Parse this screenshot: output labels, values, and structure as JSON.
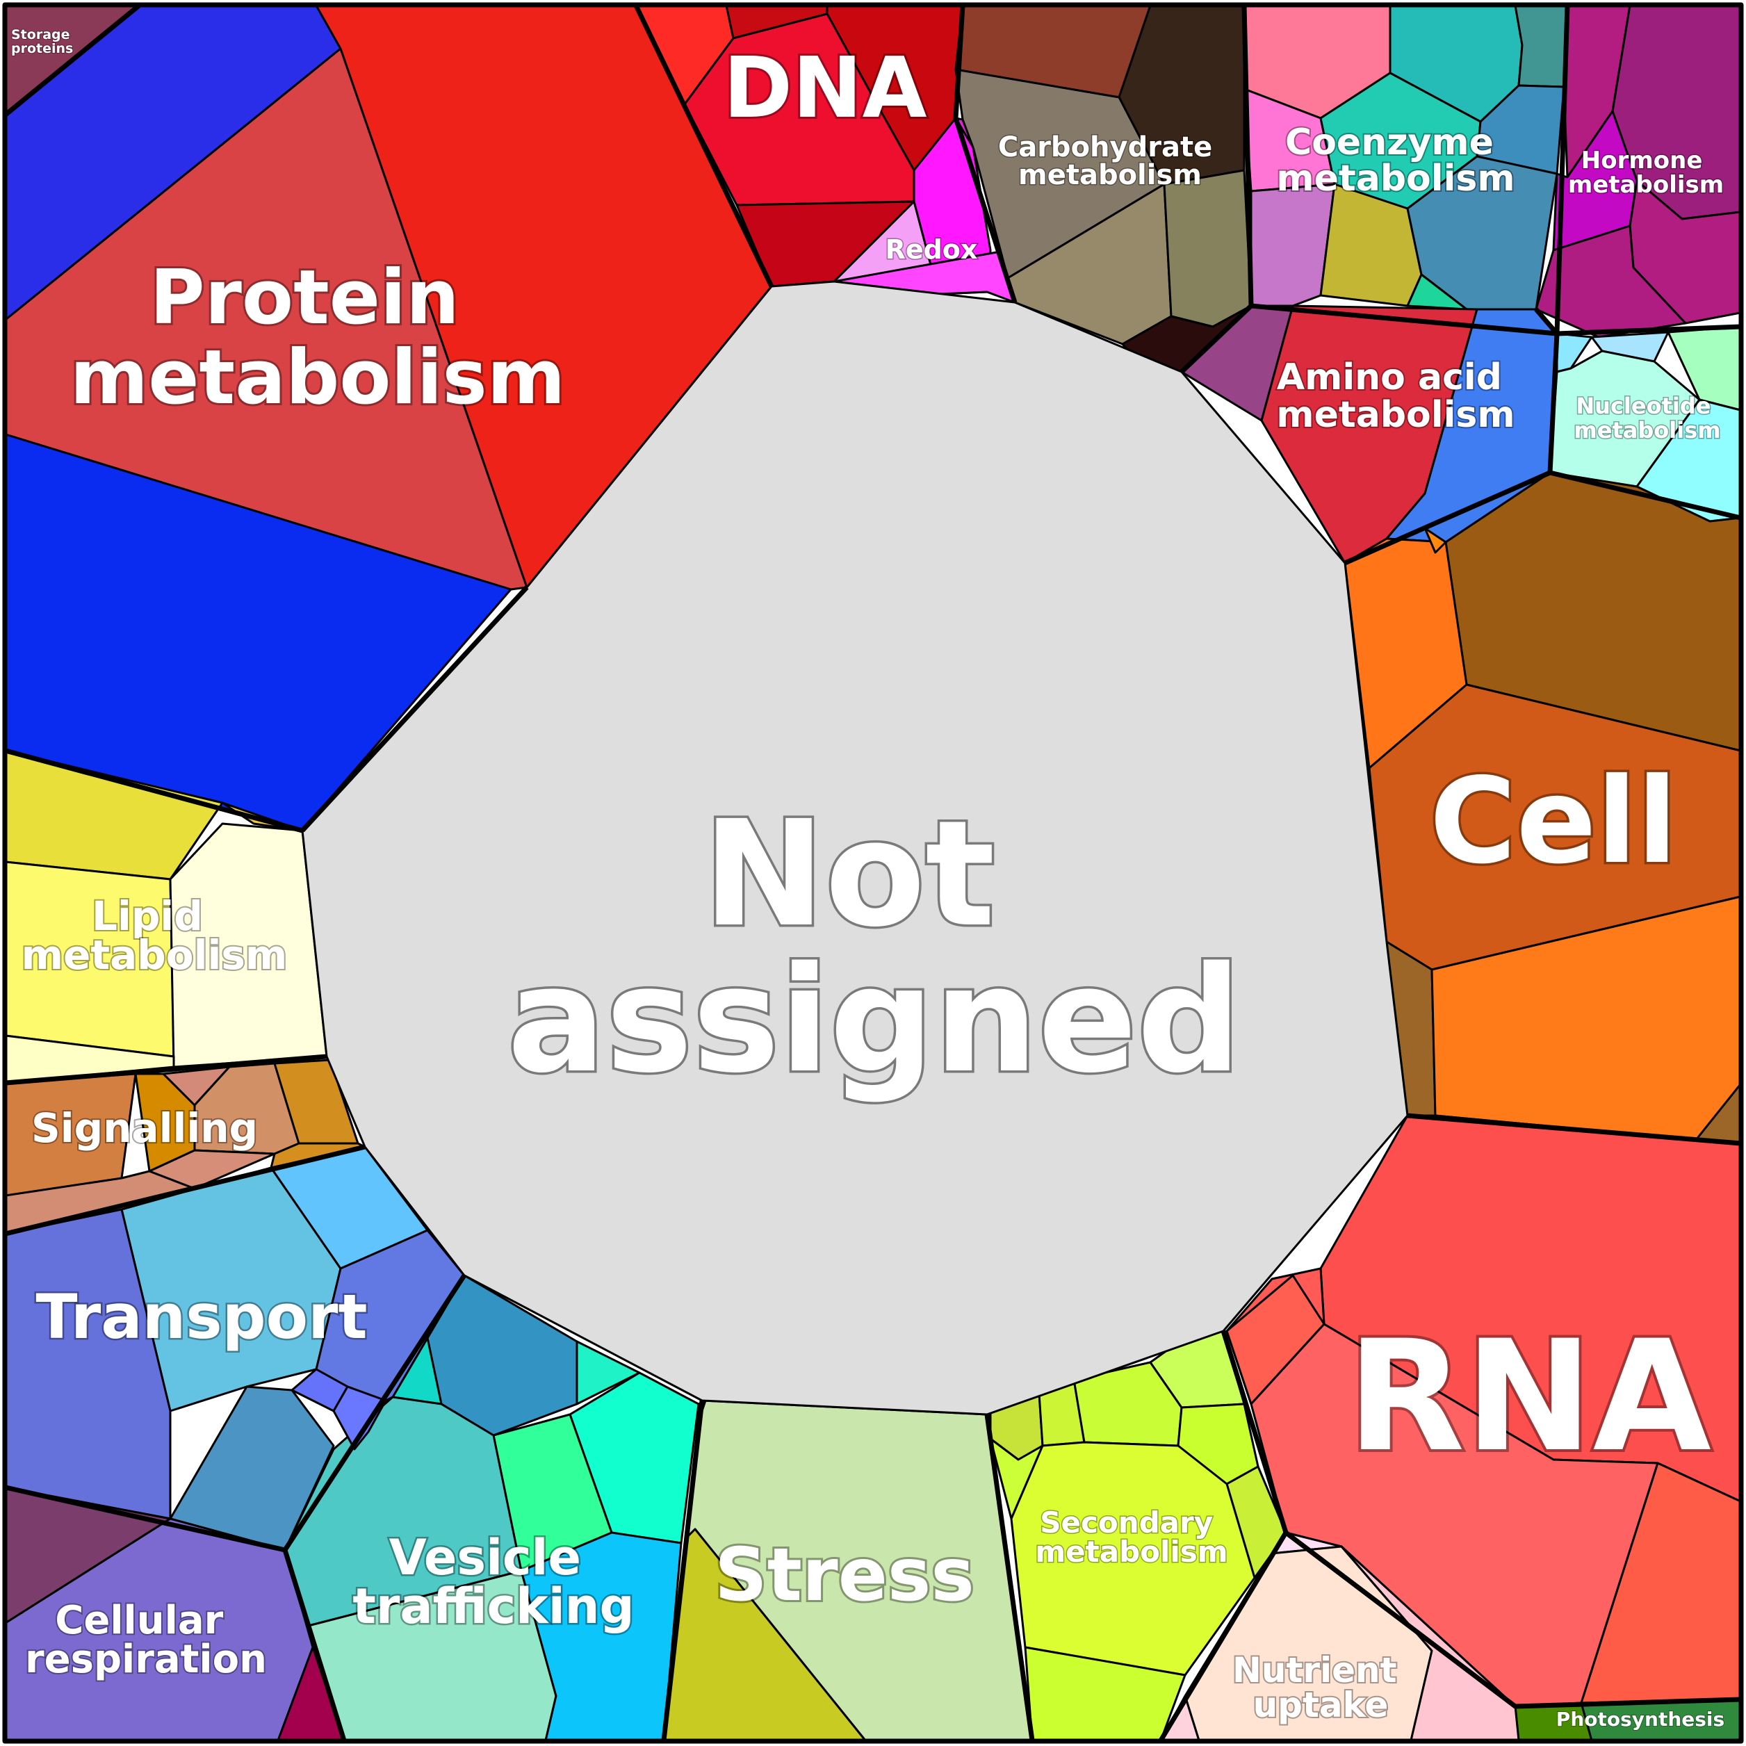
{
  "diagram": {
    "type": "voronoi-treemap",
    "background": "#ffffff",
    "border_color": "#000000",
    "categories": [
      {
        "id": "not-assigned",
        "name_lines": [
          "Not",
          "assigned"
        ],
        "color": "#dedede"
      },
      {
        "id": "protein-metabolism",
        "name_lines": [
          "Protein",
          "metabolism"
        ],
        "color": "#d94346"
      },
      {
        "id": "dna",
        "name_lines": [
          "DNA"
        ],
        "color": "#ee0f2f"
      },
      {
        "id": "redox",
        "name_lines": [
          "Redox"
        ],
        "color": "#ff18ff"
      },
      {
        "id": "carbohydrate-metabolism",
        "name_lines": [
          "Carbohydrate",
          "metabolism"
        ],
        "color": "#857a6a"
      },
      {
        "id": "coenzyme-metabolism",
        "name_lines": [
          "Coenzyme",
          "metabolism"
        ],
        "color": "#22ccb2"
      },
      {
        "id": "hormone-metabolism",
        "name_lines": [
          "Hormone",
          "metabolism"
        ],
        "color": "#b31d82"
      },
      {
        "id": "amino-acid-metabolism",
        "name_lines": [
          "Amino acid",
          "metabolism"
        ],
        "color": "#dc2b3c"
      },
      {
        "id": "nucleotide-metabolism",
        "name_lines": [
          "Nucleotide",
          "metabolism"
        ],
        "color": "#9df7e7"
      },
      {
        "id": "cell",
        "name_lines": [
          "Cell"
        ],
        "color": "#d15a18"
      },
      {
        "id": "rna",
        "name_lines": [
          "RNA"
        ],
        "color": "#fe4f4f"
      },
      {
        "id": "photosynthesis",
        "name_lines": [
          "Photosynthesis"
        ],
        "color": "#308a3e"
      },
      {
        "id": "nutrient-uptake",
        "name_lines": [
          "Nutrient",
          "uptake"
        ],
        "color": "#ffe4d4"
      },
      {
        "id": "secondary-metabolism",
        "name_lines": [
          "Secondary",
          "metabolism"
        ],
        "color": "#dbfe33"
      },
      {
        "id": "stress",
        "name_lines": [
          "Stress"
        ],
        "color": "#c9e6ac"
      },
      {
        "id": "vesicle-trafficking",
        "name_lines": [
          "Vesicle",
          "trafficking"
        ],
        "color": "#4fc9c6"
      },
      {
        "id": "cellular-respiration",
        "name_lines": [
          "Cellular",
          "respiration"
        ],
        "color": "#7c6ad0"
      },
      {
        "id": "transport",
        "name_lines": [
          "Transport"
        ],
        "color": "#6672dc"
      },
      {
        "id": "signalling",
        "name_lines": [
          "Signalling"
        ],
        "color": "#d38d74"
      },
      {
        "id": "lipid-metabolism",
        "name_lines": [
          "Lipid",
          "metabolism"
        ],
        "color": "#fefa6d"
      },
      {
        "id": "storage-proteins",
        "name_lines": [
          "Storage",
          "proteins"
        ],
        "color": "#8a3a57"
      }
    ]
  }
}
